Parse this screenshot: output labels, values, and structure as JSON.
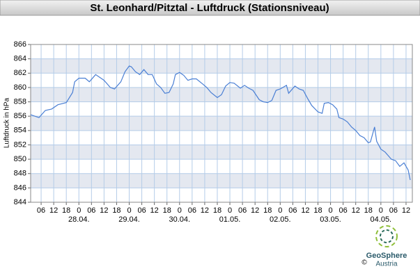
{
  "chart_data": {
    "type": "line",
    "title": "St. Leonhard/Pitztal - Luftdruck (Stationsniveau)",
    "ylabel": "Luftdruck in hPa",
    "color": "#4a7fd4",
    "grid": true,
    "x": [
      1,
      5,
      8,
      11,
      14,
      18,
      21,
      22,
      24,
      27,
      29,
      32,
      35,
      36,
      39,
      41,
      44,
      46,
      48,
      49,
      51,
      53,
      55,
      57,
      59,
      61,
      63,
      65,
      67,
      69,
      70,
      72,
      74,
      76,
      78,
      80,
      83,
      85,
      87,
      90,
      92,
      94,
      96,
      98,
      101,
      103,
      105,
      107,
      110,
      112,
      114,
      116,
      118,
      120,
      123,
      124,
      127,
      129,
      131,
      133,
      135,
      138,
      140,
      141,
      143,
      145,
      147,
      148,
      150,
      152,
      154,
      156,
      158,
      160,
      162,
      163,
      165,
      166,
      168,
      170,
      173,
      175,
      177,
      179,
      181,
      182
    ],
    "values": [
      856.2,
      855.8,
      856.8,
      857.0,
      857.6,
      857.9,
      859.3,
      860.8,
      861.3,
      861.3,
      860.8,
      861.8,
      861.2,
      861.0,
      860.0,
      859.8,
      860.8,
      862.2,
      863.0,
      862.9,
      862.2,
      861.8,
      862.5,
      861.8,
      861.8,
      860.5,
      860.0,
      859.2,
      859.3,
      860.5,
      861.8,
      862.1,
      861.7,
      861.0,
      861.2,
      861.2,
      860.5,
      860.0,
      859.3,
      858.6,
      859.0,
      860.2,
      860.7,
      860.6,
      859.9,
      860.3,
      859.9,
      859.6,
      858.3,
      858.0,
      857.9,
      858.2,
      859.6,
      859.8,
      860.3,
      859.2,
      860.2,
      859.8,
      859.6,
      858.5,
      857.5,
      856.6,
      856.4,
      857.8,
      857.9,
      857.6,
      857.0,
      855.8,
      855.6,
      855.2,
      854.5,
      854.0,
      853.3,
      853.0,
      852.3,
      852.4,
      854.5,
      852.5,
      851.4,
      851.0,
      850.0,
      849.8,
      849.0,
      849.5,
      848.5,
      847.1
    ],
    "xlim": [
      1,
      183
    ],
    "ylim": [
      844,
      866
    ],
    "yticks": [
      844,
      846,
      848,
      850,
      852,
      854,
      856,
      858,
      860,
      862,
      864,
      866
    ],
    "xticks": [
      {
        "value": 6,
        "label": "06"
      },
      12,
      18,
      {
        "value": 24,
        "label": "0"
      },
      {
        "value": 30,
        "label": "06"
      },
      {
        "value": 36,
        "label": "12"
      },
      {
        "value": 42,
        "label": "18"
      },
      {
        "value": 48,
        "label": "0"
      },
      {
        "value": 54,
        "label": "06"
      },
      {
        "value": 60,
        "label": "12"
      },
      {
        "value": 66,
        "label": "18"
      },
      {
        "value": 72,
        "label": "0"
      },
      {
        "value": 78,
        "label": "06"
      },
      {
        "value": 84,
        "label": "12"
      },
      {
        "value": 90,
        "label": "18"
      },
      {
        "value": 96,
        "label": "0"
      },
      {
        "value": 102,
        "label": "06"
      },
      {
        "value": 108,
        "label": "12"
      },
      {
        "value": 114,
        "label": "18"
      },
      {
        "value": 120,
        "label": "0"
      },
      {
        "value": 126,
        "label": "06"
      },
      {
        "value": 132,
        "label": "12"
      },
      {
        "value": 138,
        "label": "18"
      },
      {
        "value": 144,
        "label": "0"
      },
      {
        "value": 150,
        "label": "06"
      },
      {
        "value": 156,
        "label": "12"
      },
      {
        "value": 162,
        "label": "18"
      },
      {
        "value": 168,
        "label": "0"
      },
      {
        "value": 174,
        "label": "06"
      },
      {
        "value": 180,
        "label": "12"
      }
    ],
    "date_ticks": [
      {
        "value": 24,
        "label": "28.04."
      },
      {
        "value": 48,
        "label": "29.04."
      },
      {
        "value": 72,
        "label": "30.04."
      },
      {
        "value": 96,
        "label": "01.05."
      },
      {
        "value": 120,
        "label": "02.05."
      },
      {
        "value": 144,
        "label": "03.05."
      },
      {
        "value": 168,
        "label": "04.05."
      }
    ]
  },
  "branding": {
    "name": "GeoSphere",
    "sub": "Austria",
    "copyright": "©"
  }
}
